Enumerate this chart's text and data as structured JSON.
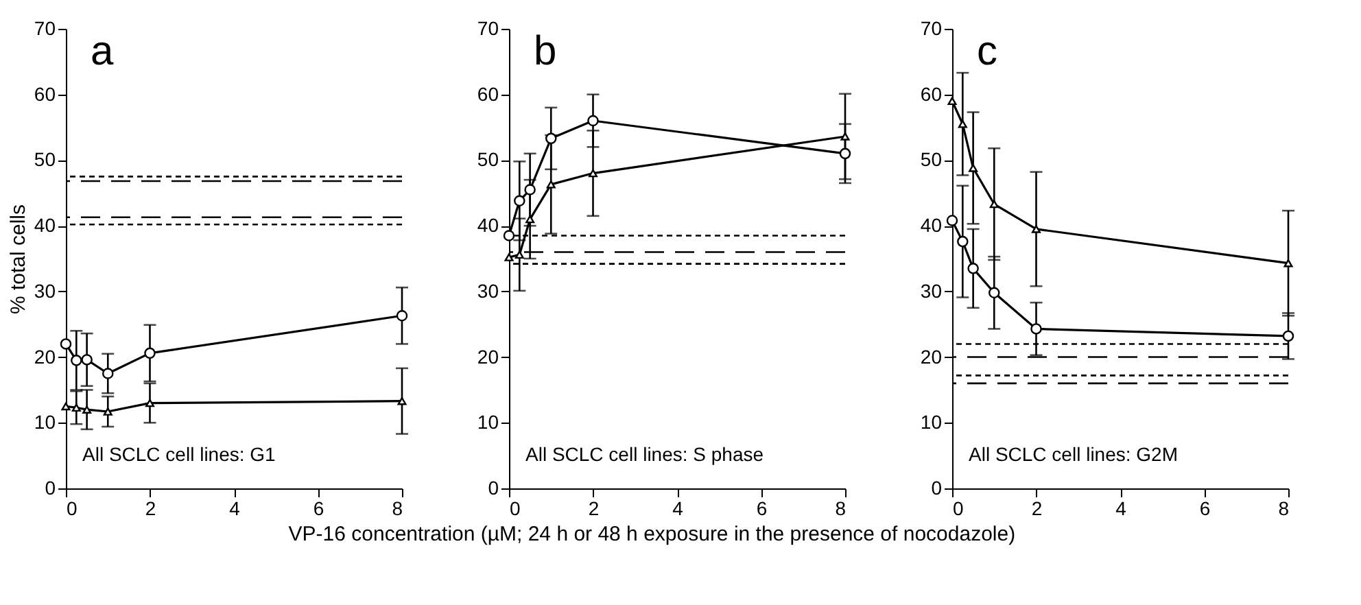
{
  "chart_data": [
    {
      "type": "line",
      "ylabel": "% total cells",
      "annotations": [
        "a",
        "All SCLC cell lines: G1"
      ],
      "x": [
        0,
        0.25,
        0.5,
        1,
        2,
        8
      ],
      "xlim": [
        0,
        8
      ],
      "xticks": [
        0,
        2,
        4,
        6,
        8
      ],
      "ylim": [
        0,
        70
      ],
      "yticks": [
        0,
        10,
        20,
        30,
        40,
        50,
        60,
        70
      ],
      "grid": false,
      "series": [
        {
          "color": "#000000",
          "marker": "circle",
          "values": [
            22,
            19.5,
            19.6,
            17.5,
            20.6,
            26.3
          ],
          "errors": [
            null,
            4.5,
            4,
            3,
            4.3,
            4.3
          ]
        },
        {
          "color": "#000000",
          "marker": "triangle",
          "values": [
            12.5,
            12.3,
            12,
            11.7,
            13,
            13.3
          ],
          "errors": [
            null,
            2.5,
            3,
            2.3,
            3,
            5
          ]
        }
      ],
      "ref_lines": [
        {
          "axis": "y",
          "value": 47.5,
          "line_style": "dotted",
          "color": "#000000"
        },
        {
          "axis": "y",
          "value": 46.8,
          "line_style": "dashed",
          "color": "#000000"
        },
        {
          "axis": "y",
          "value": 41.3,
          "line_style": "dashed",
          "color": "#000000"
        },
        {
          "axis": "y",
          "value": 40.2,
          "line_style": "dotted",
          "color": "#000000"
        }
      ]
    },
    {
      "type": "line",
      "xlabel": "VP-16 concentration (µM; 24 h or 48 h exposure in the presence of nocodazole)",
      "annotations": [
        "b",
        "All SCLC cell lines: S phase"
      ],
      "x": [
        0,
        0.25,
        0.5,
        1,
        2,
        8
      ],
      "xlim": [
        0,
        8
      ],
      "xticks": [
        0,
        2,
        4,
        6,
        8
      ],
      "ylim": [
        0,
        70
      ],
      "yticks": [
        0,
        10,
        20,
        30,
        40,
        50,
        60,
        70
      ],
      "grid": false,
      "series": [
        {
          "color": "#000000",
          "marker": "circle",
          "values": [
            38.5,
            43.8,
            45.5,
            53.3,
            56,
            51
          ],
          "errors": [
            null,
            6,
            5.5,
            4.7,
            4,
            4.5
          ]
        },
        {
          "color": "#000000",
          "marker": "triangle",
          "values": [
            35.2,
            35.6,
            41,
            46.3,
            48,
            53.6
          ],
          "errors": [
            null,
            5.5,
            6,
            7.5,
            6.5,
            6.5
          ]
        }
      ],
      "ref_lines": [
        {
          "axis": "y",
          "value": 38.5,
          "line_style": "dotted",
          "color": "#000000"
        },
        {
          "axis": "y",
          "value": 36,
          "line_style": "dashed",
          "color": "#000000"
        },
        {
          "axis": "y",
          "value": 34.2,
          "line_style": "dotted",
          "color": "#000000"
        }
      ]
    },
    {
      "type": "line",
      "annotations": [
        "c",
        "All SCLC cell lines: G2M"
      ],
      "x": [
        0,
        0.25,
        0.5,
        1,
        2,
        8
      ],
      "xlim": [
        0,
        8
      ],
      "xticks": [
        0,
        2,
        4,
        6,
        8
      ],
      "ylim": [
        0,
        70
      ],
      "yticks": [
        0,
        10,
        20,
        30,
        40,
        50,
        60,
        70
      ],
      "grid": false,
      "series": [
        {
          "color": "#000000",
          "marker": "circle",
          "values": [
            40.8,
            37.6,
            33.5,
            29.8,
            24.3,
            23.2
          ],
          "errors": [
            null,
            8.5,
            6,
            5.5,
            4,
            3.5
          ]
        },
        {
          "color": "#000000",
          "marker": "triangle",
          "values": [
            59,
            55.5,
            48.8,
            43.3,
            39.5,
            34.3
          ],
          "errors": [
            null,
            7.8,
            8.5,
            8.5,
            8.7,
            8
          ]
        }
      ],
      "ref_lines": [
        {
          "axis": "y",
          "value": 22,
          "line_style": "dotted",
          "color": "#000000"
        },
        {
          "axis": "y",
          "value": 20,
          "line_style": "dashed",
          "color": "#000000"
        },
        {
          "axis": "y",
          "value": 17.2,
          "line_style": "dotted",
          "color": "#000000"
        },
        {
          "axis": "y",
          "value": 16,
          "line_style": "dashed",
          "color": "#000000"
        }
      ]
    }
  ]
}
